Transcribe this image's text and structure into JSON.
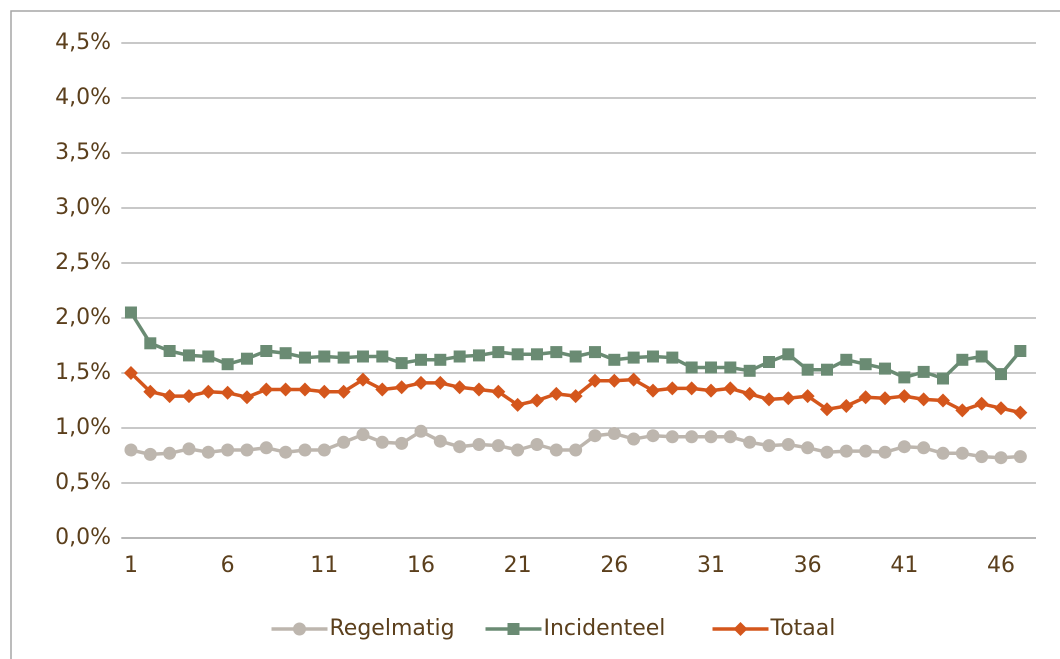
{
  "chart_data": {
    "type": "line",
    "x": [
      1,
      2,
      3,
      4,
      5,
      6,
      7,
      8,
      9,
      10,
      11,
      12,
      13,
      14,
      15,
      16,
      17,
      18,
      19,
      20,
      21,
      22,
      23,
      24,
      25,
      26,
      27,
      28,
      29,
      30,
      31,
      32,
      33,
      34,
      35,
      36,
      37,
      38,
      39,
      40,
      41,
      42,
      43,
      44,
      45,
      46,
      47
    ],
    "xlim": [
      0.5,
      47.5
    ],
    "xticks": [
      1,
      6,
      11,
      16,
      21,
      26,
      31,
      36,
      41,
      46
    ],
    "ylim": [
      0,
      4.5
    ],
    "yticks": [
      {
        "value": 0,
        "label": "0,0%"
      },
      {
        "value": 0.5,
        "label": "0,5%"
      },
      {
        "value": 1,
        "label": "1,0%"
      },
      {
        "value": 1.5,
        "label": "1,5%"
      },
      {
        "value": 2,
        "label": "2,0%"
      },
      {
        "value": 2.5,
        "label": "2,5%"
      },
      {
        "value": 3,
        "label": "3,0%"
      },
      {
        "value": 3.5,
        "label": "3,5%"
      },
      {
        "value": 4,
        "label": "4,0%"
      },
      {
        "value": 4.5,
        "label": "4,5%"
      }
    ],
    "grid": true,
    "legend": "bottom",
    "series": [
      {
        "name": "Regelmatig",
        "color": "#bdb6ae",
        "marker": "circle",
        "values": [
          0.8,
          0.76,
          0.77,
          0.81,
          0.78,
          0.8,
          0.8,
          0.82,
          0.78,
          0.8,
          0.8,
          0.87,
          0.94,
          0.87,
          0.86,
          0.97,
          0.88,
          0.83,
          0.85,
          0.84,
          0.8,
          0.85,
          0.8,
          0.8,
          0.93,
          0.95,
          0.9,
          0.93,
          0.92,
          0.92,
          0.92,
          0.92,
          0.87,
          0.84,
          0.85,
          0.82,
          0.78,
          0.79,
          0.79,
          0.78,
          0.83,
          0.82,
          0.77,
          0.77,
          0.74,
          0.73,
          0.74
        ]
      },
      {
        "name": "Incidenteel",
        "color": "#6a8b73",
        "marker": "square",
        "values": [
          2.05,
          1.77,
          1.7,
          1.66,
          1.65,
          1.58,
          1.63,
          1.7,
          1.68,
          1.64,
          1.65,
          1.64,
          1.65,
          1.65,
          1.59,
          1.62,
          1.62,
          1.65,
          1.66,
          1.69,
          1.67,
          1.67,
          1.69,
          1.65,
          1.69,
          1.62,
          1.64,
          1.65,
          1.64,
          1.55,
          1.55,
          1.55,
          1.52,
          1.6,
          1.67,
          1.53,
          1.53,
          1.62,
          1.58,
          1.54,
          1.46,
          1.51,
          1.45,
          1.62,
          1.65,
          1.49,
          1.7
        ]
      },
      {
        "name": "Totaal",
        "color": "#d4561c",
        "marker": "diamond",
        "values": [
          1.5,
          1.33,
          1.29,
          1.29,
          1.33,
          1.32,
          1.28,
          1.35,
          1.35,
          1.35,
          1.33,
          1.33,
          1.44,
          1.35,
          1.37,
          1.41,
          1.41,
          1.37,
          1.35,
          1.33,
          1.21,
          1.25,
          1.31,
          1.29,
          1.43,
          1.43,
          1.44,
          1.34,
          1.36,
          1.36,
          1.34,
          1.36,
          1.31,
          1.26,
          1.27,
          1.29,
          1.17,
          1.2,
          1.28,
          1.27,
          1.29,
          1.26,
          1.25,
          1.16,
          1.22,
          1.18,
          1.14
        ]
      }
    ]
  }
}
